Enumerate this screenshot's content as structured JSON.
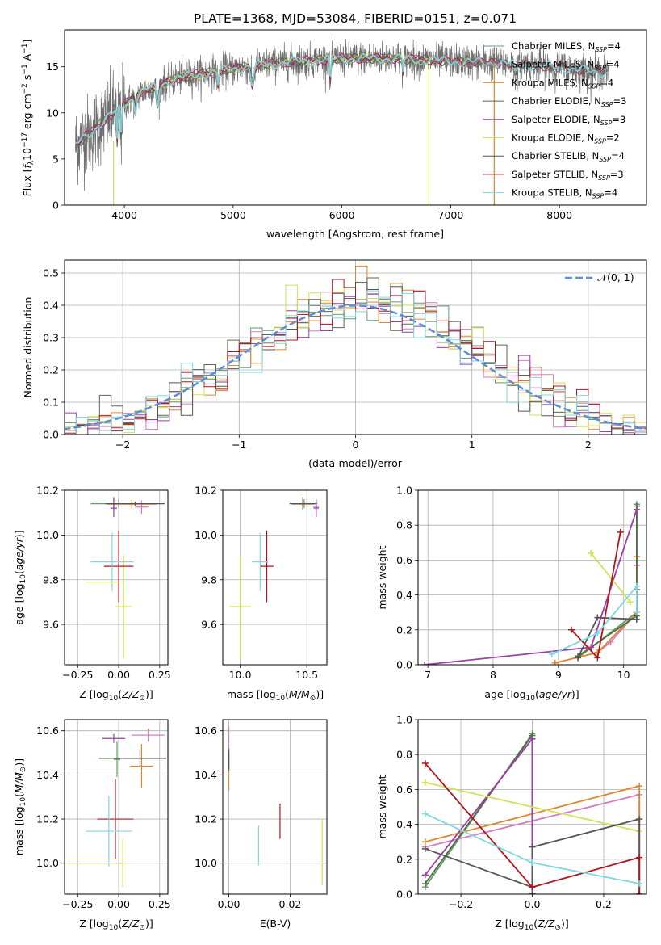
{
  "figure_title": "PLATE=1368, MJD=53084, FIBERID=0151, z=0.071",
  "colors": {
    "Chabrier MILES": "#5d9e6a",
    "Salpeter MILES": "#d67bc1",
    "Kroupa MILES": "#e0862b",
    "Chabrier ELODIE": "#556b45",
    "Salpeter ELODIE": "#9d3fa6",
    "Kroupa ELODIE": "#d4e157",
    "Chabrier STELIB": "#555555",
    "Salpeter STELIB": "#b0161e",
    "Kroupa STELIB": "#80d8e0",
    "normal": "#5b8ed6"
  },
  "chart_data": [
    {
      "id": "spectrum",
      "type": "line",
      "title": "PLATE=1368, MJD=53084, FIBERID=0151, z=0.071",
      "xlabel": "wavelength [Angstrom, rest frame]",
      "ylabel": "Flux [f_λ 10^-17 erg cm^-2 s^-1 A^-1]",
      "xlim": [
        3450,
        8800
      ],
      "ylim": [
        0,
        19
      ],
      "xticks": [
        4000,
        5000,
        6000,
        7000,
        8000
      ],
      "yticks": [
        0,
        5,
        10,
        15
      ],
      "legend_position": "upper right",
      "legend": [
        {
          "name": "Chabrier MILES, N_SSP=4"
        },
        {
          "name": "Salpeter MILES, N_SSP=4"
        },
        {
          "name": "Kroupa MILES, N_SSP=4"
        },
        {
          "name": "Chabrier ELODIE, N_SSP=3"
        },
        {
          "name": "Salpeter ELODIE, N_SSP=3"
        },
        {
          "name": "Kroupa ELODIE, N_SSP=2"
        },
        {
          "name": "Chabrier STELIB, N_SSP=4"
        },
        {
          "name": "Salpeter STELIB, N_SSP=3"
        },
        {
          "name": "Kroupa STELIB, N_SSP=4"
        }
      ],
      "continuum": {
        "x": [
          3550,
          3700,
          3900,
          4000,
          4200,
          4500,
          5000,
          5500,
          6000,
          6500,
          7000,
          7500,
          8000,
          8450
        ],
        "y": [
          6.5,
          8.0,
          10.0,
          11.0,
          12.5,
          13.8,
          14.8,
          15.5,
          15.9,
          15.9,
          15.6,
          15.4,
          14.9,
          14.3
        ]
      }
    },
    {
      "id": "residuals",
      "type": "histogram",
      "xlabel": "(data-model)/error",
      "ylabel": "Normed distribution",
      "xlim": [
        -2.5,
        2.5
      ],
      "ylim": [
        0,
        0.54
      ],
      "xticks": [
        -2,
        -1,
        0,
        1,
        2
      ],
      "yticks": [
        0.0,
        0.1,
        0.2,
        0.3,
        0.4,
        0.5
      ],
      "bin_width": 0.1,
      "legend_position": "upper right",
      "legend": [
        {
          "name": "𝒩(0, 1)"
        }
      ]
    },
    {
      "id": "age-vs-Z",
      "type": "errorbar",
      "xlabel": "Z [log10(Z/Z⊙)]",
      "ylabel": "age  [log10(age/yr)]",
      "xlim": [
        -0.33,
        0.3
      ],
      "ylim": [
        9.42,
        10.2
      ],
      "xticks": [
        -0.25,
        0.0,
        0.25
      ],
      "yticks": [
        9.6,
        9.8,
        10.0,
        10.2
      ],
      "points": [
        {
          "model": "Chabrier MILES",
          "x": 0.0,
          "y": 10.14,
          "xerr": 0.17,
          "yerr": 0.02
        },
        {
          "model": "Salpeter MILES",
          "x": 0.14,
          "y": 10.125,
          "xerr": 0.04,
          "yerr": 0.03
        },
        {
          "model": "Kroupa MILES",
          "x": 0.08,
          "y": 10.138,
          "xerr": 0.15,
          "yerr": 0.02
        },
        {
          "model": "Chabrier ELODIE",
          "x": -0.03,
          "y": 10.14,
          "xerr": 0.02,
          "yerr": 0.03
        },
        {
          "model": "Salpeter ELODIE",
          "x": -0.03,
          "y": 10.12,
          "xerr": 0.02,
          "yerr": 0.04
        },
        {
          "model": "Kroupa ELODIE",
          "x": 0.03,
          "y": 9.68,
          "xerr": 0.05,
          "yerr": 0.23
        },
        {
          "model": "Chabrier STELIB",
          "x": 0.1,
          "y": 10.14,
          "xerr": 0.18,
          "yerr": 0.01
        },
        {
          "model": "Salpeter STELIB",
          "x": 0.0,
          "y": 9.86,
          "xerr": 0.09,
          "yerr": 0.16
        },
        {
          "model": "Kroupa STELIB",
          "x": -0.04,
          "y": 9.88,
          "xerr": 0.13,
          "yerr": 0.13
        },
        {
          "model": "Kroupa ELODIE",
          "x": -0.1,
          "y": 9.79,
          "xerr": 0.1,
          "yerr": 0.0
        }
      ]
    },
    {
      "id": "age-vs-mass",
      "type": "errorbar",
      "xlabel": "mass [log10(M/M⊙)]",
      "xlim": [
        9.87,
        10.65
      ],
      "ylim": [
        9.42,
        10.2
      ],
      "xticks": [
        10.0,
        10.5
      ],
      "yticks": [
        9.6,
        9.8,
        10.0,
        10.2
      ],
      "points": [
        {
          "model": "Chabrier MILES",
          "x": 10.48,
          "y": 10.14,
          "xerr": 0.1,
          "yerr": 0.02
        },
        {
          "model": "Salpeter MILES",
          "x": 10.57,
          "y": 10.125,
          "xerr": 0.02,
          "yerr": 0.03
        },
        {
          "model": "Kroupa MILES",
          "x": 10.47,
          "y": 10.138,
          "xerr": 0.08,
          "yerr": 0.02
        },
        {
          "model": "Chabrier ELODIE",
          "x": 10.47,
          "y": 10.14,
          "xerr": 0.02,
          "yerr": 0.03
        },
        {
          "model": "Salpeter ELODIE",
          "x": 10.57,
          "y": 10.12,
          "xerr": 0.02,
          "yerr": 0.04
        },
        {
          "model": "Kroupa ELODIE",
          "x": 10.0,
          "y": 9.68,
          "xerr": 0.08,
          "yerr": 0.23
        },
        {
          "model": "Chabrier STELIB",
          "x": 10.47,
          "y": 10.14,
          "xerr": 0.1,
          "yerr": 0.01
        },
        {
          "model": "Salpeter STELIB",
          "x": 10.2,
          "y": 9.86,
          "xerr": 0.05,
          "yerr": 0.16
        },
        {
          "model": "Kroupa STELIB",
          "x": 10.15,
          "y": 9.88,
          "xerr": 0.06,
          "yerr": 0.13
        }
      ]
    },
    {
      "id": "weight-vs-age",
      "type": "line",
      "xlabel": "age  [log10(age/yr)]",
      "ylabel": "mass weight",
      "xlim": [
        6.85,
        10.35
      ],
      "ylim": [
        0,
        1.0
      ],
      "xticks": [
        7,
        8,
        9,
        10
      ],
      "yticks": [
        0.0,
        0.2,
        0.4,
        0.6,
        0.8,
        1.0
      ],
      "series": [
        {
          "model": "Chabrier MILES",
          "x": [
            9.3,
            10.2,
            10.2
          ],
          "y": [
            0.04,
            0.3,
            0.92
          ]
        },
        {
          "model": "Salpeter MILES",
          "x": [
            9.6,
            9.8,
            10.2,
            10.2
          ],
          "y": [
            0.07,
            0.13,
            0.3,
            0.57
          ]
        },
        {
          "model": "Kroupa MILES",
          "x": [
            8.95,
            9.6,
            10.2,
            10.2
          ],
          "y": [
            0.01,
            0.07,
            0.3,
            0.62
          ]
        },
        {
          "model": "Chabrier ELODIE",
          "x": [
            9.3,
            10.2,
            10.2
          ],
          "y": [
            0.05,
            0.28,
            0.91
          ]
        },
        {
          "model": "Salpeter ELODIE",
          "x": [
            6.95,
            9.5,
            10.2
          ],
          "y": [
            0.0,
            0.1,
            0.89
          ]
        },
        {
          "model": "Kroupa ELODIE",
          "x": [
            9.5,
            10.1
          ],
          "y": [
            0.64,
            0.36
          ]
        },
        {
          "model": "Chabrier STELIB",
          "x": [
            9.3,
            9.6,
            10.2,
            10.2
          ],
          "y": [
            0.04,
            0.27,
            0.26,
            0.43
          ]
        },
        {
          "model": "Salpeter STELIB",
          "x": [
            9.2,
            9.6,
            9.95
          ],
          "y": [
            0.2,
            0.04,
            0.76
          ]
        },
        {
          "model": "Kroupa STELIB",
          "x": [
            8.9,
            9.6,
            10.2,
            10.2
          ],
          "y": [
            0.06,
            0.18,
            0.45,
            0.3
          ]
        }
      ]
    },
    {
      "id": "mass-vs-Z",
      "type": "errorbar",
      "xlabel": "Z [log10(Z/Z⊙)]",
      "ylabel": "mass [log10(M/M⊙)]",
      "xlim": [
        -0.33,
        0.3
      ],
      "ylim": [
        9.86,
        10.65
      ],
      "xticks": [
        -0.25,
        0.0,
        0.25
      ],
      "yticks": [
        10.0,
        10.2,
        10.4,
        10.6
      ],
      "points": [
        {
          "model": "Chabrier MILES",
          "x": -0.01,
          "y": 10.47,
          "xerr": 0.02,
          "yerr": 0.08
        },
        {
          "model": "Salpeter MILES",
          "x": 0.18,
          "y": 10.58,
          "xerr": 0.1,
          "yerr": 0.03
        },
        {
          "model": "Kroupa MILES",
          "x": 0.14,
          "y": 10.44,
          "xerr": 0.07,
          "yerr": 0.1
        },
        {
          "model": "Chabrier ELODIE",
          "x": 0.0,
          "y": 10.475,
          "xerr": 0.12,
          "yerr": 0.0
        },
        {
          "model": "Salpeter ELODIE",
          "x": -0.03,
          "y": 10.565,
          "xerr": 0.07,
          "yerr": 0.02
        },
        {
          "model": "Kroupa ELODIE",
          "x": -0.13,
          "y": 10.0,
          "xerr": 0.2,
          "yerr": 0.0
        },
        {
          "model": "Chabrier STELIB",
          "x": 0.13,
          "y": 10.475,
          "xerr": 0.16,
          "yerr": 0.04
        },
        {
          "model": "Salpeter STELIB",
          "x": -0.02,
          "y": 10.2,
          "xerr": 0.11,
          "yerr": 0.18
        },
        {
          "model": "Kroupa STELIB",
          "x": -0.06,
          "y": 10.145,
          "xerr": 0.14,
          "yerr": 0.16
        },
        {
          "model": "Kroupa ELODIE",
          "x": 0.025,
          "y": 10.0,
          "xerr": 0.0,
          "yerr": 0.11
        }
      ]
    },
    {
      "id": "mass-vs-EBV",
      "type": "errorbar",
      "xlabel": "E(B-V)",
      "xlim": [
        -0.002,
        0.032
      ],
      "ylim": [
        9.86,
        10.65
      ],
      "xticks": [
        0.0,
        0.02
      ],
      "yticks": [
        10.0,
        10.2,
        10.4,
        10.6
      ],
      "points": [
        {
          "model": "Salpeter MILES",
          "x": 0.0,
          "y": 10.57,
          "xerr": 0.0,
          "yerr": 0.05
        },
        {
          "model": "Kroupa MILES",
          "x": 0.0,
          "y": 10.4,
          "xerr": 0.0,
          "yerr": 0.07
        },
        {
          "model": "Chabrier ELODIE",
          "x": 0.0,
          "y": 10.47,
          "xerr": 0.0,
          "yerr": 0.05
        },
        {
          "model": "Chabrier STELIB",
          "x": 0.0,
          "y": 10.47,
          "xerr": 0.0,
          "yerr": 0.04
        },
        {
          "model": "Salpeter STELIB",
          "x": 0.0167,
          "y": 10.19,
          "xerr": 0.0,
          "yerr": 0.08
        },
        {
          "model": "Kroupa STELIB",
          "x": 0.0097,
          "y": 10.08,
          "xerr": 0.0,
          "yerr": 0.09
        },
        {
          "model": "Kroupa ELODIE",
          "x": 0.0305,
          "y": 10.05,
          "xerr": 0.0,
          "yerr": 0.15
        }
      ]
    },
    {
      "id": "weight-vs-Z",
      "type": "line",
      "xlabel": "Z [log10(Z/Z⊙)]",
      "ylabel": "mass weight",
      "xlim": [
        -0.32,
        0.32
      ],
      "ylim": [
        0,
        1.0
      ],
      "xticks": [
        -0.2,
        0.0,
        0.2
      ],
      "yticks": [
        0.0,
        0.2,
        0.4,
        0.6,
        0.8,
        1.0
      ],
      "series": [
        {
          "model": "Chabrier MILES",
          "x": [
            -0.3,
            0.0,
            0.0
          ],
          "y": [
            0.04,
            0.92,
            0.0
          ]
        },
        {
          "model": "Salpeter MILES",
          "x": [
            -0.3,
            0.3,
            0.3
          ],
          "y": [
            0.27,
            0.57,
            0.0
          ]
        },
        {
          "model": "Kroupa MILES",
          "x": [
            -0.3,
            0.3,
            0.3
          ],
          "y": [
            0.3,
            0.62,
            0.0
          ]
        },
        {
          "model": "Chabrier ELODIE",
          "x": [
            -0.3,
            0.0,
            0.0
          ],
          "y": [
            0.06,
            0.91,
            0.0
          ]
        },
        {
          "model": "Salpeter ELODIE",
          "x": [
            -0.3,
            0.0,
            0.0
          ],
          "y": [
            0.11,
            0.89,
            0.0
          ]
        },
        {
          "model": "Kroupa ELODIE",
          "x": [
            -0.3,
            0.3
          ],
          "y": [
            0.64,
            0.36
          ]
        },
        {
          "model": "Chabrier STELIB",
          "x": [
            -0.3,
            0.0,
            0.0,
            0.3,
            0.3
          ],
          "y": [
            0.26,
            0.04,
            0.27,
            0.43,
            0.0
          ]
        },
        {
          "model": "Salpeter STELIB",
          "x": [
            -0.3,
            0.0,
            0.3,
            0.3
          ],
          "y": [
            0.75,
            0.04,
            0.21,
            0.0
          ]
        },
        {
          "model": "Kroupa STELIB",
          "x": [
            -0.3,
            0.0,
            0.3
          ],
          "y": [
            0.46,
            0.18,
            0.06
          ]
        }
      ]
    }
  ]
}
